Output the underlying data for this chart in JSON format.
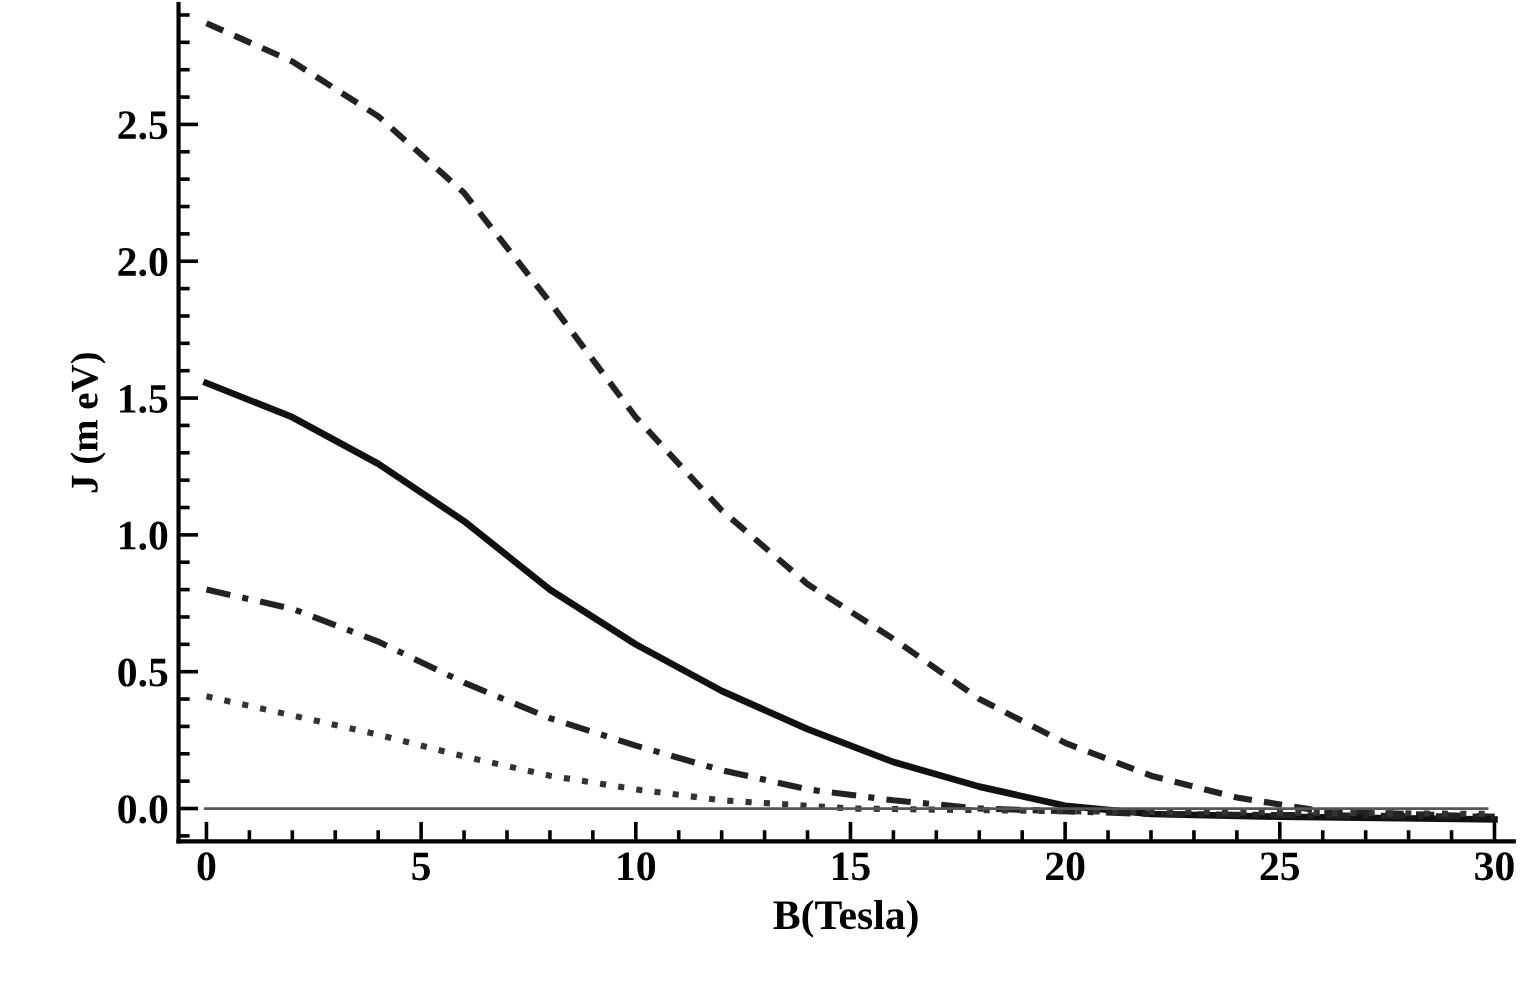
{
  "chart_data": {
    "type": "line",
    "xlabel": "B(Tesla)",
    "ylabel": "J (m eV)",
    "xlim": [
      -0.65,
      30.45
    ],
    "ylim": [
      -0.12,
      2.94
    ],
    "xticks": [
      0,
      5,
      10,
      15,
      20,
      25,
      30
    ],
    "yticks": [
      {
        "value": 0,
        "label": "0.0"
      },
      0.5,
      {
        "value": 1,
        "label": "1.0"
      },
      1.5,
      {
        "value": 2,
        "label": "2.0"
      },
      2.5
    ],
    "grid": false,
    "legend": false,
    "marker": "none",
    "ref_lines": [
      {
        "axis": "y",
        "value": 0,
        "color": "#555555",
        "line_style": "solid"
      }
    ],
    "series": [
      {
        "color": "#222222",
        "line_style": "dashed",
        "x": [
          0,
          2,
          4,
          6,
          8,
          10,
          12,
          14,
          16,
          18,
          20,
          22,
          24,
          26,
          28,
          30
        ],
        "values": [
          2.87,
          2.73,
          2.53,
          2.25,
          1.85,
          1.43,
          1.09,
          0.82,
          0.62,
          0.4,
          0.24,
          0.12,
          0.04,
          -0.01,
          -0.02,
          -0.03
        ]
      },
      {
        "color": "#111111",
        "line_style": "solid",
        "x": [
          0,
          2,
          4,
          6,
          8,
          10,
          12,
          14,
          16,
          18,
          20,
          22,
          25,
          30
        ],
        "values": [
          1.555,
          1.43,
          1.26,
          1.05,
          0.8,
          0.6,
          0.43,
          0.29,
          0.17,
          0.08,
          0.01,
          -0.02,
          -0.03,
          -0.04
        ]
      },
      {
        "color": "#222222",
        "line_style": "dashdot",
        "x": [
          0,
          2,
          4,
          6,
          8,
          10,
          12,
          14,
          16,
          18,
          22,
          30
        ],
        "values": [
          0.8,
          0.73,
          0.61,
          0.46,
          0.33,
          0.23,
          0.14,
          0.07,
          0.03,
          0.0,
          -0.02,
          -0.03
        ]
      },
      {
        "color": "#333333",
        "line_style": "dotted",
        "x": [
          0,
          2,
          4,
          6,
          8,
          10,
          12,
          15,
          20,
          30
        ],
        "values": [
          0.41,
          0.34,
          0.27,
          0.19,
          0.12,
          0.07,
          0.03,
          0.0,
          -0.01,
          -0.02
        ]
      }
    ]
  }
}
